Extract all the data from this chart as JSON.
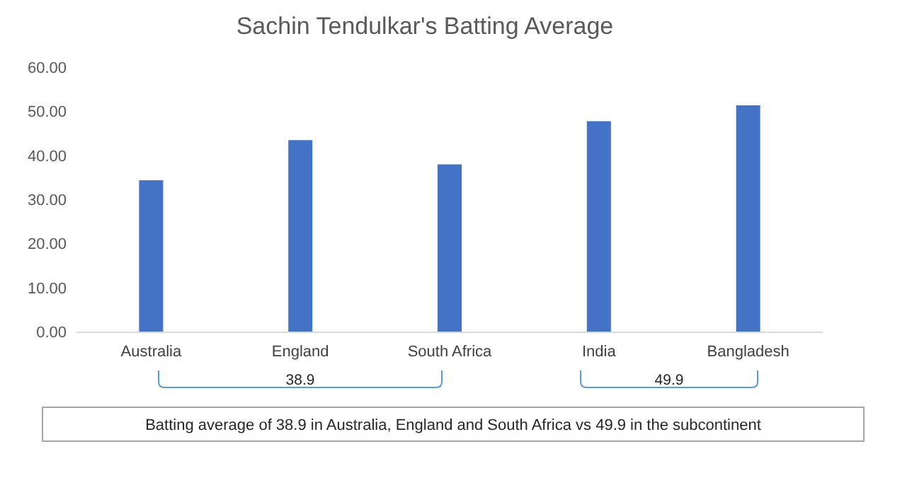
{
  "chart_data": {
    "type": "bar",
    "title": "Sachin Tendulkar's Batting Average",
    "categories": [
      "Australia",
      "England",
      "South Africa",
      "India",
      "Bangladesh"
    ],
    "values": [
      34.5,
      43.6,
      38.1,
      47.9,
      51.5
    ],
    "color": "#4472c4",
    "ylim": [
      0,
      60
    ],
    "yticks": [
      {
        "value": 0,
        "label": "0.00"
      },
      {
        "value": 10,
        "label": "10.00"
      },
      {
        "value": 20,
        "label": "20.00"
      },
      {
        "value": 30,
        "label": "30.00"
      },
      {
        "value": 40,
        "label": "40.00"
      },
      {
        "value": 50,
        "label": "50.00"
      },
      {
        "value": 60,
        "label": "60.00"
      }
    ],
    "grid": false,
    "annotations": [
      "38.9",
      "49.9",
      "Batting average of 38.9 in Australia, England and South Africa vs 49.9 in the subcontinent"
    ]
  }
}
